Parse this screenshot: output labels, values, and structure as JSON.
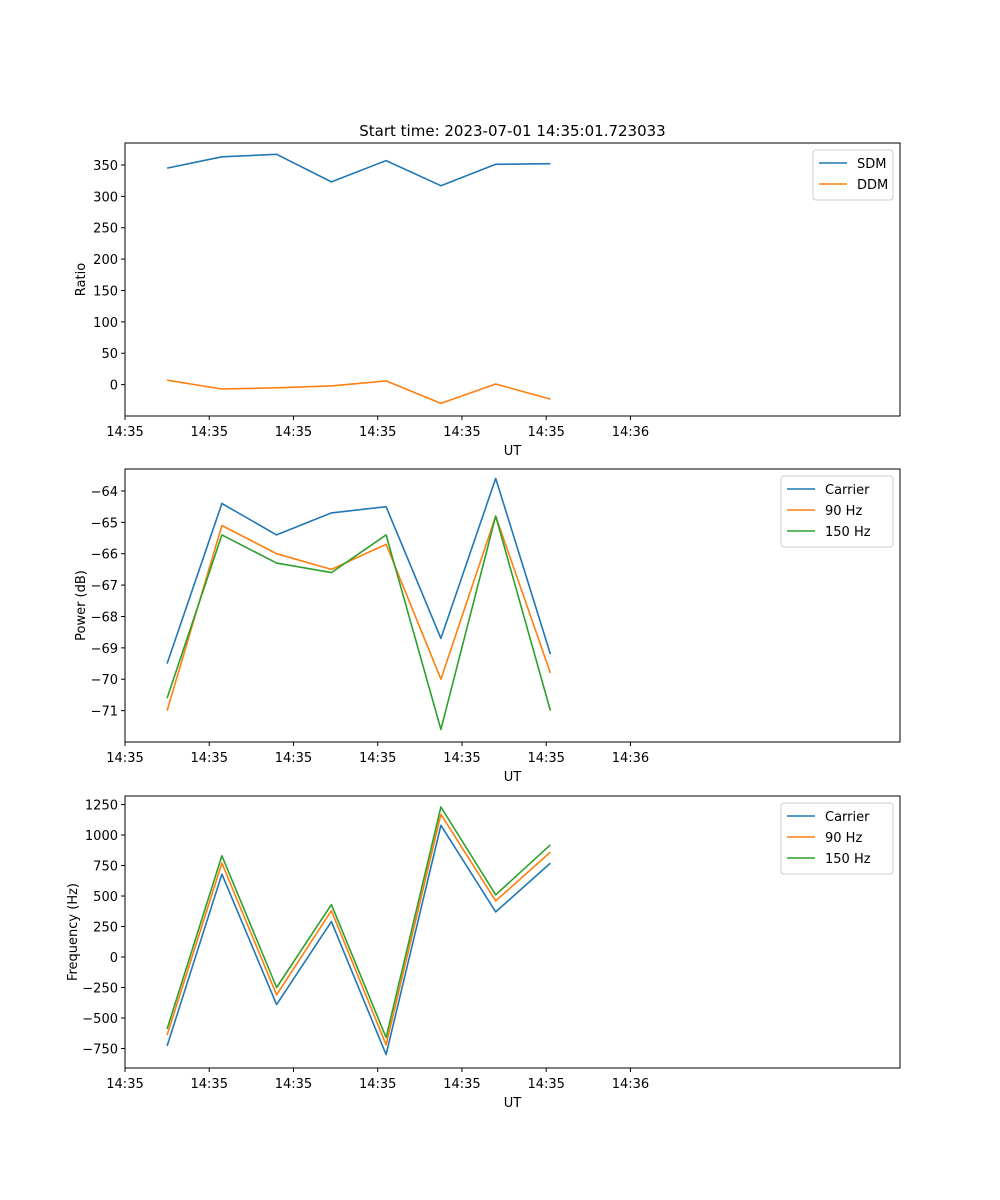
{
  "figure": {
    "title": "Start time: 2023-07-01 14:35:01.723033"
  },
  "chart_data": [
    {
      "type": "line",
      "xlabel": "UT",
      "ylabel": "Ratio",
      "xlim": [
        0,
        9.2
      ],
      "ylim": [
        -50,
        385
      ],
      "xticks": [
        0,
        1,
        2,
        3,
        4,
        5,
        6
      ],
      "xtick_labels": [
        "14:35",
        "14:35",
        "14:35",
        "14:35",
        "14:35",
        "14:35",
        "14:36"
      ],
      "yticks": [
        0,
        50,
        100,
        150,
        200,
        250,
        300,
        350
      ],
      "ytick_labels": [
        "0",
        "50",
        "100",
        "150",
        "200",
        "250",
        "300",
        "350"
      ],
      "legend": "top-right",
      "x": [
        0.5,
        1.15,
        1.8,
        2.45,
        3.1,
        3.75,
        4.4,
        5.05
      ],
      "series": [
        {
          "name": "SDM",
          "color": "#1f77b4",
          "values": [
            345,
            363,
            367,
            323,
            357,
            317,
            351,
            352
          ]
        },
        {
          "name": "DDM",
          "color": "#ff7f0e",
          "values": [
            7,
            -7,
            -5,
            -2,
            6,
            -30,
            1,
            -23
          ]
        }
      ]
    },
    {
      "type": "line",
      "xlabel": "UT",
      "ylabel": "Power (dB)",
      "xlim": [
        0,
        9.2
      ],
      "ylim": [
        -72.0,
        -63.3
      ],
      "xticks": [
        0,
        1,
        2,
        3,
        4,
        5,
        6
      ],
      "xtick_labels": [
        "14:35",
        "14:35",
        "14:35",
        "14:35",
        "14:35",
        "14:35",
        "14:36"
      ],
      "yticks": [
        -71,
        -70,
        -69,
        -68,
        -67,
        -66,
        -65,
        -64
      ],
      "ytick_labels": [
        "−71",
        "−70",
        "−69",
        "−68",
        "−67",
        "−66",
        "−65",
        "−64"
      ],
      "legend": "top-right",
      "x": [
        0.5,
        1.15,
        1.8,
        2.45,
        3.1,
        3.75,
        4.4,
        5.05
      ],
      "series": [
        {
          "name": "Carrier",
          "color": "#1f77b4",
          "values": [
            -69.5,
            -64.4,
            -65.4,
            -64.7,
            -64.5,
            -68.7,
            -63.6,
            -69.2
          ]
        },
        {
          "name": "90 Hz",
          "color": "#ff7f0e",
          "values": [
            -71.0,
            -65.1,
            -66.0,
            -66.5,
            -65.7,
            -70.0,
            -64.8,
            -69.8
          ]
        },
        {
          "name": "150 Hz",
          "color": "#2ca02c",
          "values": [
            -70.6,
            -65.4,
            -66.3,
            -66.6,
            -65.4,
            -71.6,
            -64.8,
            -71.0
          ]
        }
      ]
    },
    {
      "type": "line",
      "xlabel": "UT",
      "ylabel": "Frequency (Hz)",
      "xlim": [
        0,
        9.2
      ],
      "ylim": [
        -910,
        1320
      ],
      "xticks": [
        0,
        1,
        2,
        3,
        4,
        5,
        6
      ],
      "xtick_labels": [
        "14:35",
        "14:35",
        "14:35",
        "14:35",
        "14:35",
        "14:35",
        "14:36"
      ],
      "yticks": [
        -750,
        -500,
        -250,
        0,
        250,
        500,
        750,
        1000,
        1250
      ],
      "ytick_labels": [
        "−750",
        "−500",
        "−250",
        "0",
        "250",
        "500",
        "750",
        "1000",
        "1250"
      ],
      "legend": "top-right",
      "x": [
        0.5,
        1.15,
        1.8,
        2.45,
        3.1,
        3.75,
        4.4,
        5.05
      ],
      "series": [
        {
          "name": "Carrier",
          "color": "#1f77b4",
          "values": [
            -730,
            680,
            -390,
            290,
            -800,
            1080,
            370,
            770
          ]
        },
        {
          "name": "90 Hz",
          "color": "#ff7f0e",
          "values": [
            -640,
            770,
            -310,
            380,
            -720,
            1170,
            460,
            860
          ]
        },
        {
          "name": "150 Hz",
          "color": "#2ca02c",
          "values": [
            -590,
            830,
            -250,
            430,
            -660,
            1230,
            510,
            920
          ]
        }
      ]
    }
  ]
}
